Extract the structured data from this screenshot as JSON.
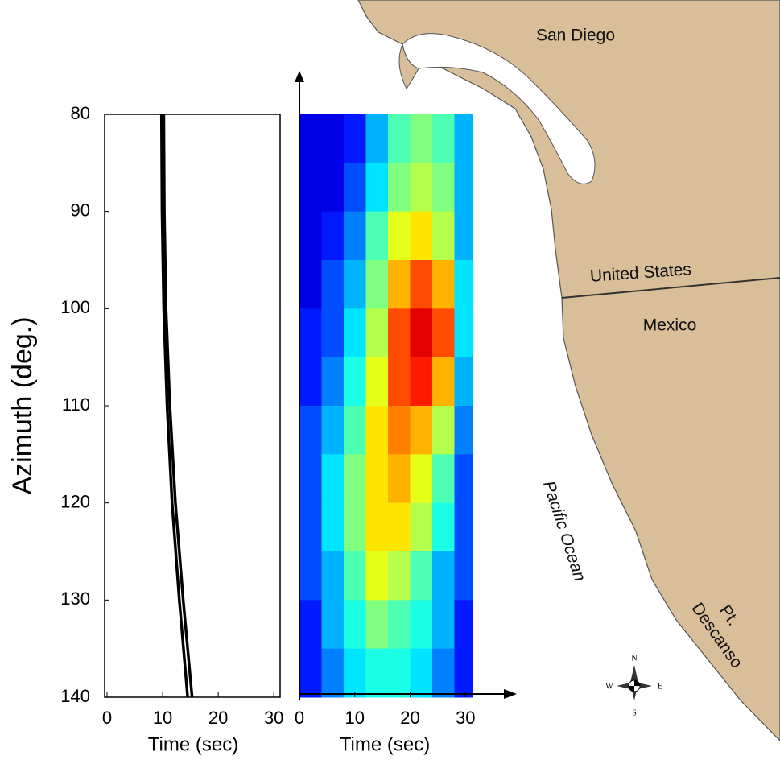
{
  "chart_data": [
    {
      "type": "line",
      "ylabel": "Azimuth (deg.)",
      "xlabel": "Time (sec)",
      "y": [
        80,
        90,
        100,
        110,
        120,
        130,
        140
      ],
      "series": [
        {
          "color": "#000000",
          "values": [
            9.8,
            9.9,
            10.2,
            10.8,
            11.7,
            13,
            14.5
          ]
        },
        {
          "color": "#000000",
          "values": [
            10.2,
            10.3,
            10.6,
            11.3,
            12.3,
            13.7,
            15.3
          ]
        }
      ],
      "xlim": [
        0,
        32
      ],
      "xticks": [
        0,
        10,
        20,
        30
      ],
      "ylim": [
        80,
        140
      ],
      "yticks": [
        80,
        90,
        100,
        110,
        120,
        130,
        140
      ],
      "y_inverted": true
    },
    {
      "type": "heatmap",
      "xlabel": "Time (sec)",
      "colormap": "jet",
      "xbins": [
        0,
        4,
        8,
        12,
        16,
        20,
        24,
        28,
        32
      ],
      "ybins": [
        80,
        85,
        90,
        95,
        100,
        105,
        110,
        115,
        120,
        125,
        130,
        135,
        140
      ],
      "values": [
        [
          0.1,
          0.1,
          0.15,
          0.3,
          0.45,
          0.5,
          0.45,
          0.3
        ],
        [
          0.1,
          0.1,
          0.2,
          0.35,
          0.5,
          0.55,
          0.5,
          0.3
        ],
        [
          0.1,
          0.15,
          0.25,
          0.45,
          0.6,
          0.65,
          0.55,
          0.3
        ],
        [
          0.1,
          0.2,
          0.3,
          0.5,
          0.7,
          0.8,
          0.7,
          0.35
        ],
        [
          0.15,
          0.2,
          0.35,
          0.55,
          0.8,
          0.9,
          0.8,
          0.35
        ],
        [
          0.15,
          0.25,
          0.4,
          0.6,
          0.8,
          0.85,
          0.7,
          0.3
        ],
        [
          0.2,
          0.3,
          0.45,
          0.65,
          0.75,
          0.7,
          0.55,
          0.25
        ],
        [
          0.2,
          0.35,
          0.5,
          0.65,
          0.7,
          0.6,
          0.45,
          0.2
        ],
        [
          0.2,
          0.35,
          0.5,
          0.65,
          0.65,
          0.55,
          0.4,
          0.2
        ],
        [
          0.2,
          0.3,
          0.45,
          0.6,
          0.55,
          0.45,
          0.3,
          0.2
        ],
        [
          0.15,
          0.3,
          0.4,
          0.5,
          0.45,
          0.4,
          0.3,
          0.15
        ],
        [
          0.15,
          0.25,
          0.35,
          0.4,
          0.4,
          0.35,
          0.25,
          0.15
        ]
      ],
      "xlim": [
        0,
        32
      ],
      "xticks": [
        0,
        10,
        20,
        30
      ],
      "ylim": [
        80,
        140
      ],
      "y_inverted": true
    }
  ],
  "map": {
    "labels": [
      "San Diego",
      "United States",
      "Mexico",
      "Pacific Ocean",
      "Pt.",
      "Descanso"
    ],
    "compass": [
      "N",
      "S",
      "E",
      "W"
    ]
  }
}
